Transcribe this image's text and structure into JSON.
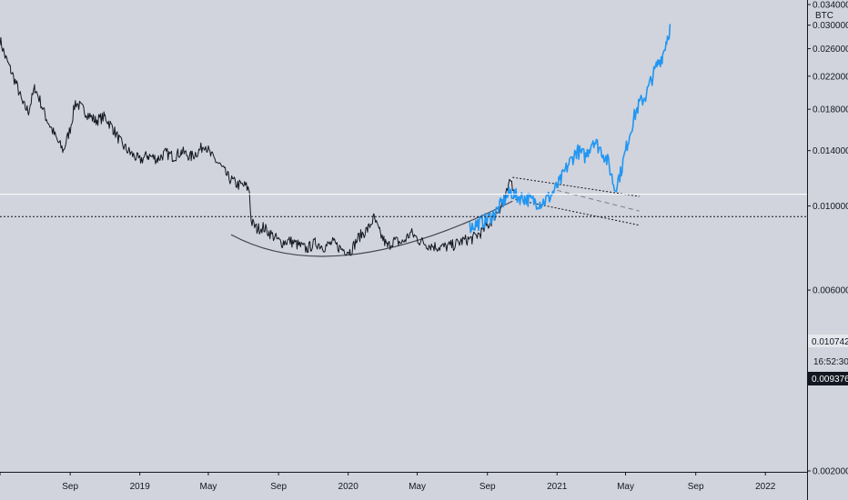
{
  "chart_data": {
    "type": "line",
    "title": "",
    "xlabel": "",
    "ylabel": "BTC",
    "axis_unit": "BTC",
    "y_scale": "log",
    "ylim": [
      0.002,
      0.034
    ],
    "xlim": [
      "2018-05-01",
      "2022-03-15"
    ],
    "grid": false,
    "x_tick_labels": [
      "ay",
      "Sep",
      "2019",
      "May",
      "Sep",
      "2020",
      "May",
      "Sep",
      "2021",
      "May",
      "Sep",
      "2022"
    ],
    "x_tick_dates": [
      "2018-05-01",
      "2018-09-01",
      "2019-01-01",
      "2019-05-01",
      "2019-09-01",
      "2020-01-01",
      "2020-05-01",
      "2020-09-01",
      "2021-01-01",
      "2021-05-01",
      "2021-09-01",
      "2022-01-01"
    ],
    "y_tick_labels": [
      "0.002000",
      "0.006000",
      "0.010000",
      "0.014000",
      "0.018000",
      "0.022000",
      "0.026000",
      "0.030000",
      "0.034000"
    ],
    "y_tick_values": [
      0.002,
      0.006,
      0.01,
      0.014,
      0.018,
      0.022,
      0.026,
      0.03,
      0.034
    ],
    "series": [
      {
        "role": "historical",
        "color": "#131722",
        "points": [
          [
            "2018-05-01",
            0.0275
          ],
          [
            "2018-05-10",
            0.0248
          ],
          [
            "2018-05-20",
            0.0228
          ],
          [
            "2018-06-01",
            0.0205
          ],
          [
            "2018-06-10",
            0.0185
          ],
          [
            "2018-06-20",
            0.0178
          ],
          [
            "2018-07-01",
            0.0205
          ],
          [
            "2018-07-10",
            0.019
          ],
          [
            "2018-07-20",
            0.0172
          ],
          [
            "2018-08-01",
            0.0158
          ],
          [
            "2018-08-10",
            0.0148
          ],
          [
            "2018-08-20",
            0.014
          ],
          [
            "2018-09-01",
            0.016
          ],
          [
            "2018-09-10",
            0.0188
          ],
          [
            "2018-09-20",
            0.0182
          ],
          [
            "2018-10-01",
            0.0175
          ],
          [
            "2018-10-15",
            0.0168
          ],
          [
            "2018-11-01",
            0.0172
          ],
          [
            "2018-11-15",
            0.016
          ],
          [
            "2018-12-01",
            0.0145
          ],
          [
            "2018-12-15",
            0.0138
          ],
          [
            "2019-01-01",
            0.0132
          ],
          [
            "2019-01-15",
            0.0136
          ],
          [
            "2019-02-01",
            0.0133
          ],
          [
            "2019-02-15",
            0.0138
          ],
          [
            "2019-03-01",
            0.0135
          ],
          [
            "2019-03-15",
            0.0139
          ],
          [
            "2019-04-01",
            0.0135
          ],
          [
            "2019-04-15",
            0.014
          ],
          [
            "2019-04-25",
            0.0146
          ],
          [
            "2019-05-05",
            0.0136
          ],
          [
            "2019-05-20",
            0.0129
          ],
          [
            "2019-06-05",
            0.0119
          ],
          [
            "2019-06-20",
            0.0114
          ],
          [
            "2019-07-05",
            0.0113
          ],
          [
            "2019-07-12",
            0.011
          ],
          [
            "2019-07-15",
            0.0091
          ],
          [
            "2019-07-25",
            0.0087
          ],
          [
            "2019-08-05",
            0.0088
          ],
          [
            "2019-08-20",
            0.0084
          ],
          [
            "2019-09-05",
            0.008
          ],
          [
            "2019-09-20",
            0.0081
          ],
          [
            "2019-10-05",
            0.0079
          ],
          [
            "2019-10-20",
            0.0077
          ],
          [
            "2019-11-05",
            0.008
          ],
          [
            "2019-11-20",
            0.0078
          ],
          [
            "2019-12-05",
            0.008
          ],
          [
            "2019-12-20",
            0.0077
          ],
          [
            "2020-01-05",
            0.0076
          ],
          [
            "2020-01-20",
            0.0083
          ],
          [
            "2020-02-05",
            0.0087
          ],
          [
            "2020-02-15",
            0.0093
          ],
          [
            "2020-02-25",
            0.0085
          ],
          [
            "2020-03-10",
            0.0078
          ],
          [
            "2020-03-20",
            0.0081
          ],
          [
            "2020-04-05",
            0.008
          ],
          [
            "2020-04-20",
            0.0085
          ],
          [
            "2020-05-05",
            0.0081
          ],
          [
            "2020-05-20",
            0.0079
          ],
          [
            "2020-06-05",
            0.0078
          ],
          [
            "2020-06-20",
            0.0078
          ],
          [
            "2020-07-05",
            0.0079
          ],
          [
            "2020-07-20",
            0.0081
          ],
          [
            "2020-08-05",
            0.0082
          ],
          [
            "2020-08-20",
            0.0085
          ],
          [
            "2020-09-05",
            0.009
          ],
          [
            "2020-09-15",
            0.0095
          ],
          [
            "2020-09-25",
            0.01
          ],
          [
            "2020-10-05",
            0.0108
          ],
          [
            "2020-10-12",
            0.0117
          ],
          [
            "2020-10-18",
            0.011
          ]
        ]
      },
      {
        "role": "projection",
        "color": "#2196f3",
        "points": [
          [
            "2020-08-01",
            0.0088
          ],
          [
            "2020-08-15",
            0.009
          ],
          [
            "2020-09-01",
            0.0092
          ],
          [
            "2020-09-15",
            0.0096
          ],
          [
            "2020-10-01",
            0.0104
          ],
          [
            "2020-10-12",
            0.0109
          ],
          [
            "2020-10-22",
            0.0106
          ],
          [
            "2020-11-05",
            0.0105
          ],
          [
            "2020-11-20",
            0.0103
          ],
          [
            "2020-12-05",
            0.0102
          ],
          [
            "2020-12-20",
            0.0106
          ],
          [
            "2021-01-05",
            0.0115
          ],
          [
            "2021-01-20",
            0.0128
          ],
          [
            "2021-02-05",
            0.014
          ],
          [
            "2021-02-20",
            0.0135
          ],
          [
            "2021-03-05",
            0.015
          ],
          [
            "2021-03-20",
            0.014
          ],
          [
            "2021-04-01",
            0.013
          ],
          [
            "2021-04-12",
            0.0111
          ],
          [
            "2021-04-22",
            0.0122
          ],
          [
            "2021-05-05",
            0.0148
          ],
          [
            "2021-05-15",
            0.017
          ],
          [
            "2021-05-25",
            0.0186
          ],
          [
            "2021-06-05",
            0.0195
          ],
          [
            "2021-06-15",
            0.0215
          ],
          [
            "2021-06-25",
            0.0235
          ],
          [
            "2021-07-05",
            0.025
          ],
          [
            "2021-07-12",
            0.0275
          ],
          [
            "2021-07-18",
            0.0295
          ]
        ]
      }
    ],
    "price_line": {
      "label": "0.010742",
      "value": 0.010742,
      "color": "#ffffff"
    },
    "last_price": {
      "label": "0.009376",
      "value": 0.009376,
      "color": "#131722"
    },
    "countdown": {
      "label": "16:52:30"
    },
    "annotations": {
      "rounded_bottom": {
        "from": [
          "2019-06-10",
          0.0084
        ],
        "bottom": [
          "2020-01-10",
          0.00745
        ],
        "to": [
          "2020-10-15",
          0.0103
        ],
        "color": "#444450"
      },
      "channel_upper": {
        "from": [
          "2020-10-15",
          0.0119
        ],
        "to": [
          "2021-05-25",
          0.0106
        ],
        "color": "#131722"
      },
      "channel_lower": {
        "from": [
          "2020-10-20",
          0.0104
        ],
        "to": [
          "2021-05-25",
          0.0089
        ],
        "color": "#131722"
      },
      "channel_mid": {
        "from": [
          "2021-01-01",
          0.011
        ],
        "to": [
          "2021-05-25",
          0.0097
        ],
        "color": "#787b86"
      }
    }
  }
}
